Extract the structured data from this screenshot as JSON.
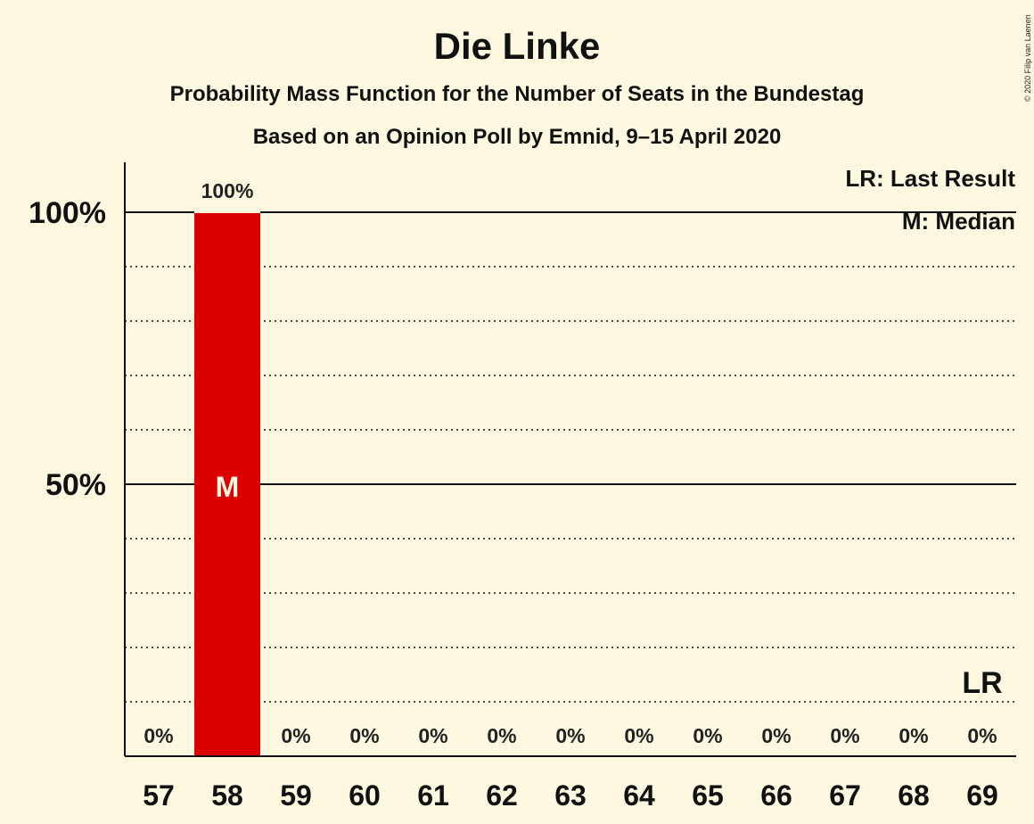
{
  "chart_data": {
    "type": "bar",
    "title": "Die Linke",
    "subtitle": "Probability Mass Function for the Number of Seats in the Bundestag",
    "subtitle2": "Based on an Opinion Poll by Emnid, 9–15 April 2020",
    "copyright": "© 2020 Filip van Laenen",
    "categories": [
      "57",
      "58",
      "59",
      "60",
      "61",
      "62",
      "63",
      "64",
      "65",
      "66",
      "67",
      "68",
      "69"
    ],
    "values": [
      0,
      100,
      0,
      0,
      0,
      0,
      0,
      0,
      0,
      0,
      0,
      0,
      0
    ],
    "value_labels": [
      "0%",
      "100%",
      "0%",
      "0%",
      "0%",
      "0%",
      "0%",
      "0%",
      "0%",
      "0%",
      "0%",
      "0%",
      "0%"
    ],
    "ylim": [
      0,
      110
    ],
    "yticks": [
      {
        "value": 50,
        "label": "50%"
      },
      {
        "value": 100,
        "label": "100%"
      }
    ],
    "dotted_gridlines": [
      10,
      20,
      30,
      40,
      60,
      70,
      80,
      90
    ],
    "median_category": "58",
    "median_marker": "M",
    "last_result_category": "69",
    "last_result_marker": "LR",
    "legend": [
      "LR: Last Result",
      "M: Median"
    ],
    "bar_color": "#dd0000",
    "background_color": "#fff8e1"
  }
}
